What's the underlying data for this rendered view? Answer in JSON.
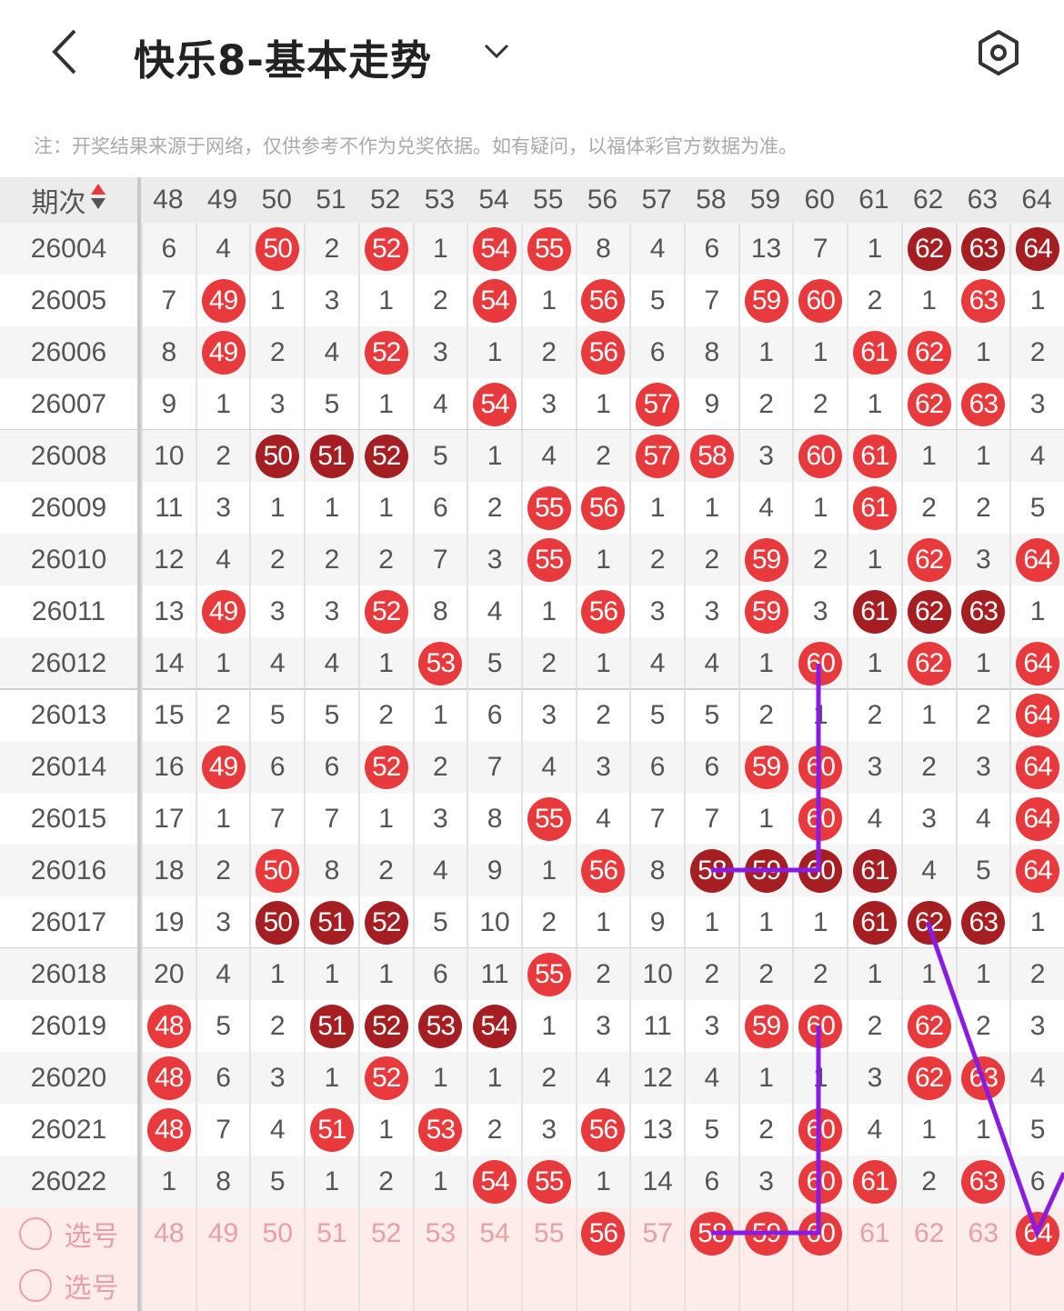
{
  "header": {
    "title": "快乐8-基本走势",
    "back_icon": "back-arrow-icon",
    "dropdown_icon": "chevron-down-icon",
    "settings_icon": "settings-icon"
  },
  "note": "注：开奖结果来源于网络，仅供参考不作为兑奖依据。如有疑问，以福体彩官方数据为准。",
  "colors": {
    "ball": "#e8393c",
    "ball_consecutive": "#a51e22",
    "trend_line": "#8a1be2",
    "select_row_bg": "#fdecea"
  },
  "table": {
    "period_header": "期次",
    "sort_icon": "sort-up-down-icon",
    "columns": [
      "48",
      "49",
      "50",
      "51",
      "52",
      "53",
      "54",
      "55",
      "56",
      "57",
      "58",
      "59",
      "60",
      "61",
      "62",
      "63",
      "64"
    ],
    "rows": [
      {
        "period": "26004",
        "cells": [
          "6",
          "4",
          "B",
          "2",
          "B",
          "1",
          "B",
          "B",
          "8",
          "4",
          "6",
          "13",
          "7",
          "1",
          "B",
          "B",
          "B"
        ]
      },
      {
        "period": "26005",
        "cells": [
          "7",
          "B",
          "1",
          "3",
          "1",
          "2",
          "B",
          "1",
          "B",
          "5",
          "7",
          "B",
          "B",
          "2",
          "1",
          "B",
          "1"
        ]
      },
      {
        "period": "26006",
        "cells": [
          "8",
          "B",
          "2",
          "4",
          "B",
          "3",
          "1",
          "2",
          "B",
          "6",
          "8",
          "1",
          "1",
          "B",
          "B",
          "1",
          "2"
        ]
      },
      {
        "period": "26007",
        "cells": [
          "9",
          "1",
          "3",
          "5",
          "1",
          "4",
          "B",
          "3",
          "1",
          "B",
          "9",
          "2",
          "2",
          "1",
          "B",
          "B",
          "3"
        ]
      },
      {
        "period": "26008",
        "cells": [
          "10",
          "2",
          "B",
          "B",
          "B",
          "5",
          "1",
          "4",
          "2",
          "B",
          "B",
          "3",
          "B",
          "B",
          "1",
          "1",
          "4"
        ]
      },
      {
        "period": "26009",
        "cells": [
          "11",
          "3",
          "1",
          "1",
          "1",
          "6",
          "2",
          "B",
          "B",
          "1",
          "1",
          "4",
          "1",
          "B",
          "2",
          "2",
          "5"
        ]
      },
      {
        "period": "26010",
        "cells": [
          "12",
          "4",
          "2",
          "2",
          "2",
          "7",
          "3",
          "B",
          "1",
          "2",
          "2",
          "B",
          "2",
          "1",
          "B",
          "3",
          "B"
        ]
      },
      {
        "period": "26011",
        "cells": [
          "13",
          "B",
          "3",
          "3",
          "B",
          "8",
          "4",
          "1",
          "B",
          "3",
          "3",
          "B",
          "3",
          "B",
          "B",
          "B",
          "1"
        ]
      },
      {
        "period": "26012",
        "cells": [
          "14",
          "1",
          "4",
          "4",
          "1",
          "B",
          "5",
          "2",
          "1",
          "4",
          "4",
          "1",
          "B",
          "1",
          "B",
          "1",
          "B"
        ]
      },
      {
        "period": "26013",
        "cells": [
          "15",
          "2",
          "5",
          "5",
          "2",
          "1",
          "6",
          "3",
          "2",
          "5",
          "5",
          "2",
          "1",
          "2",
          "1",
          "2",
          "B"
        ]
      },
      {
        "period": "26014",
        "cells": [
          "16",
          "B",
          "6",
          "6",
          "B",
          "2",
          "7",
          "4",
          "3",
          "6",
          "6",
          "B",
          "B",
          "3",
          "2",
          "3",
          "B"
        ]
      },
      {
        "period": "26015",
        "cells": [
          "17",
          "1",
          "7",
          "7",
          "1",
          "3",
          "8",
          "B",
          "4",
          "7",
          "7",
          "1",
          "B",
          "4",
          "3",
          "4",
          "B"
        ]
      },
      {
        "period": "26016",
        "cells": [
          "18",
          "2",
          "B",
          "8",
          "2",
          "4",
          "9",
          "1",
          "B",
          "8",
          "B",
          "B",
          "B",
          "B",
          "4",
          "5",
          "B"
        ]
      },
      {
        "period": "26017",
        "cells": [
          "19",
          "3",
          "B",
          "B",
          "B",
          "5",
          "10",
          "2",
          "1",
          "9",
          "1",
          "1",
          "1",
          "B",
          "B",
          "B",
          "1"
        ]
      },
      {
        "period": "26018",
        "cells": [
          "20",
          "4",
          "1",
          "1",
          "1",
          "6",
          "11",
          "B",
          "2",
          "10",
          "2",
          "2",
          "2",
          "1",
          "1",
          "1",
          "2"
        ]
      },
      {
        "period": "26019",
        "cells": [
          "B",
          "5",
          "2",
          "B",
          "B",
          "B",
          "B",
          "1",
          "3",
          "11",
          "3",
          "B",
          "B",
          "2",
          "B",
          "2",
          "3"
        ]
      },
      {
        "period": "26020",
        "cells": [
          "B",
          "6",
          "3",
          "1",
          "B",
          "1",
          "1",
          "2",
          "4",
          "12",
          "4",
          "1",
          "1",
          "3",
          "B",
          "B",
          "4"
        ]
      },
      {
        "period": "26021",
        "cells": [
          "B",
          "7",
          "4",
          "B",
          "1",
          "B",
          "2",
          "3",
          "B",
          "13",
          "5",
          "2",
          "B",
          "4",
          "1",
          "1",
          "5"
        ]
      },
      {
        "period": "26022",
        "cells": [
          "1",
          "8",
          "5",
          "1",
          "2",
          "1",
          "B",
          "B",
          "1",
          "14",
          "6",
          "3",
          "B",
          "B",
          "2",
          "B",
          "6"
        ]
      }
    ],
    "select_row": {
      "label": "选号",
      "selected": [
        "56",
        "58",
        "59",
        "60",
        "64"
      ]
    },
    "select_row_2": {
      "label": "选号"
    }
  }
}
